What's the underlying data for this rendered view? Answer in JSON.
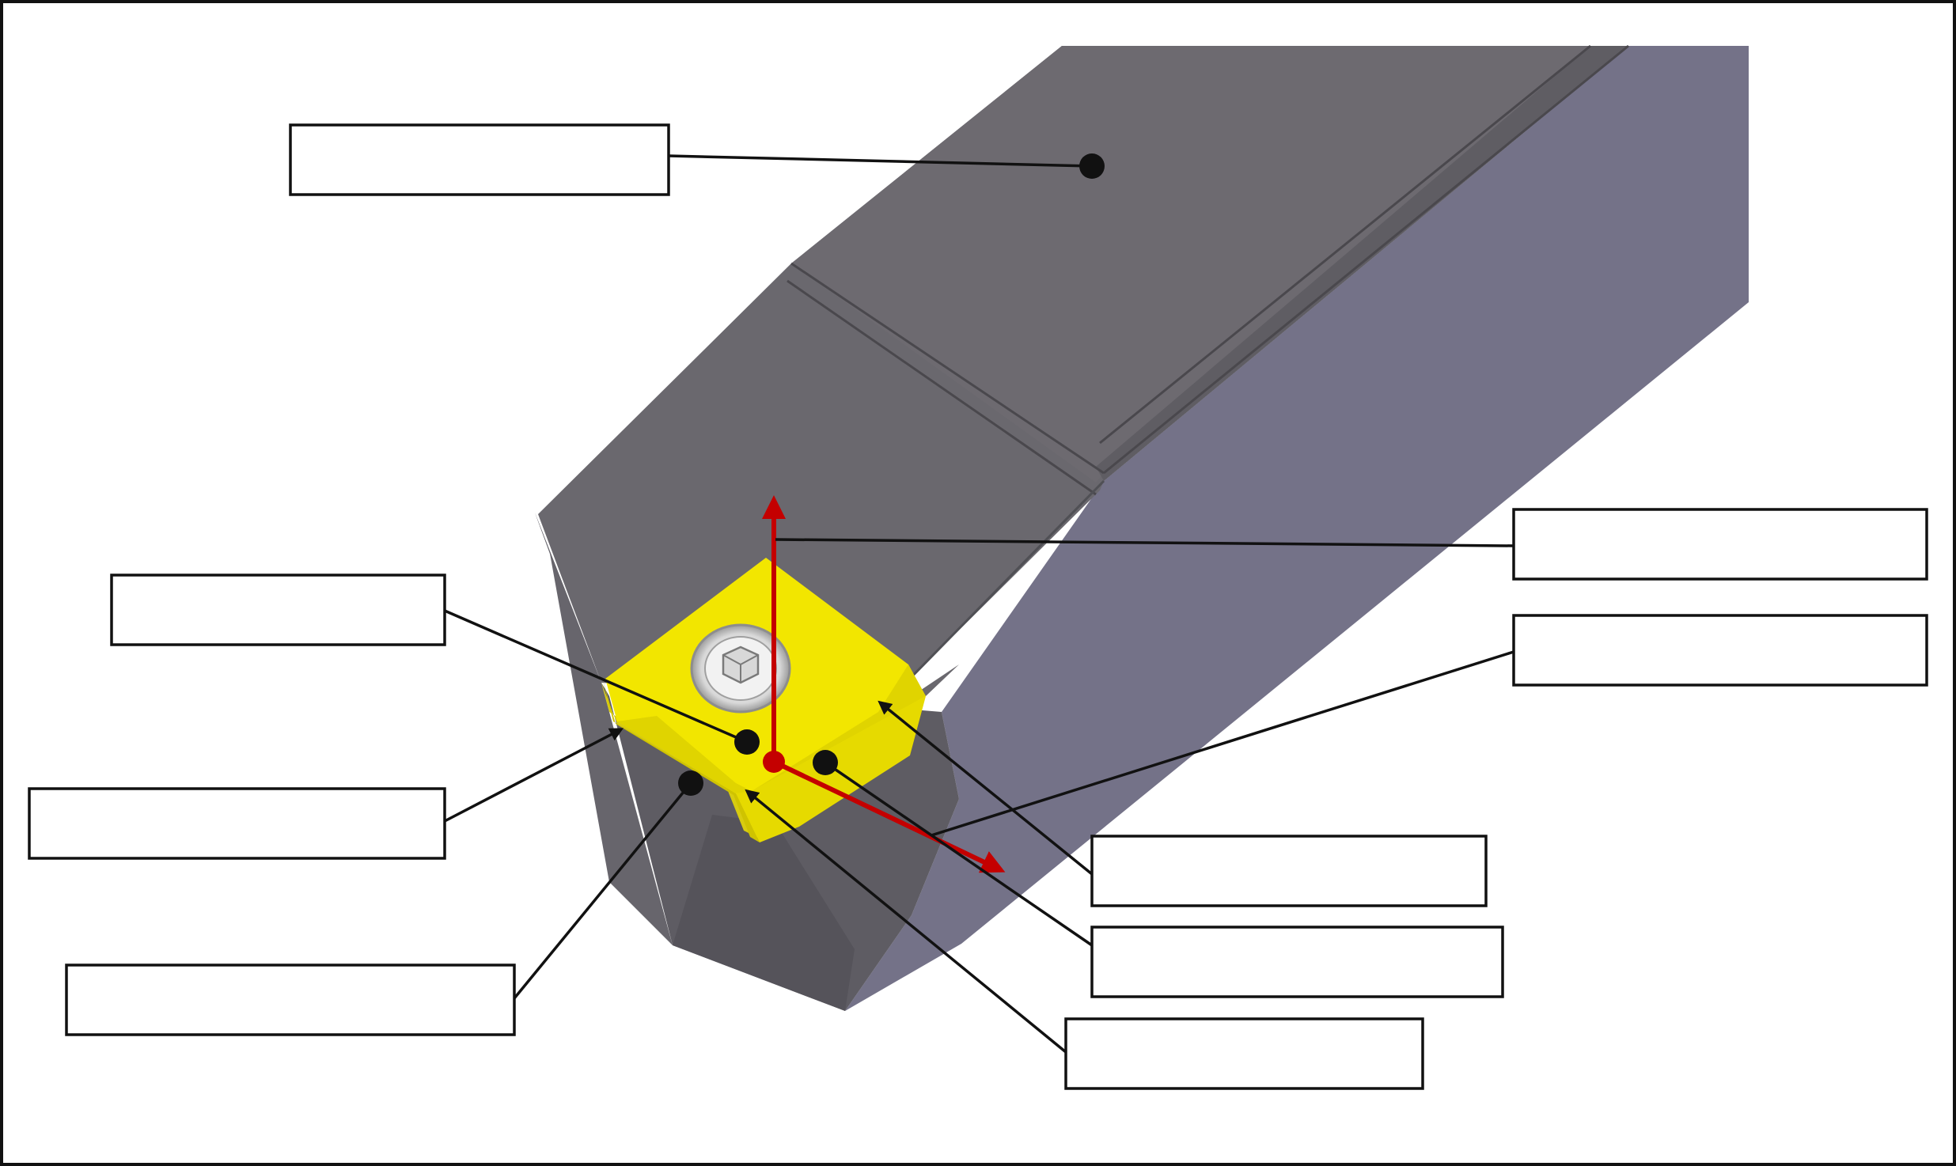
{
  "diagram": {
    "labels": {
      "shank_top": "",
      "reference_point_axis": "",
      "rake_face": "",
      "main_cutting_edge_right": "",
      "flank_face": "",
      "tool_corner": "",
      "minor_cutting_edge": "",
      "main_cutting_edge_bottom": "",
      "nose_point": "",
      "feed_direction": ""
    },
    "colors": {
      "shank_top": "#6b6870",
      "shank_side": "#727085",
      "shank_front": "#5c5a60",
      "insert": "#f1e400",
      "axes": "#c40000",
      "leader": "#111111"
    },
    "icons": {
      "screw": "hex-socket-screw-icon",
      "arrow": "arrowhead-icon",
      "dot": "marker-dot-icon"
    }
  }
}
